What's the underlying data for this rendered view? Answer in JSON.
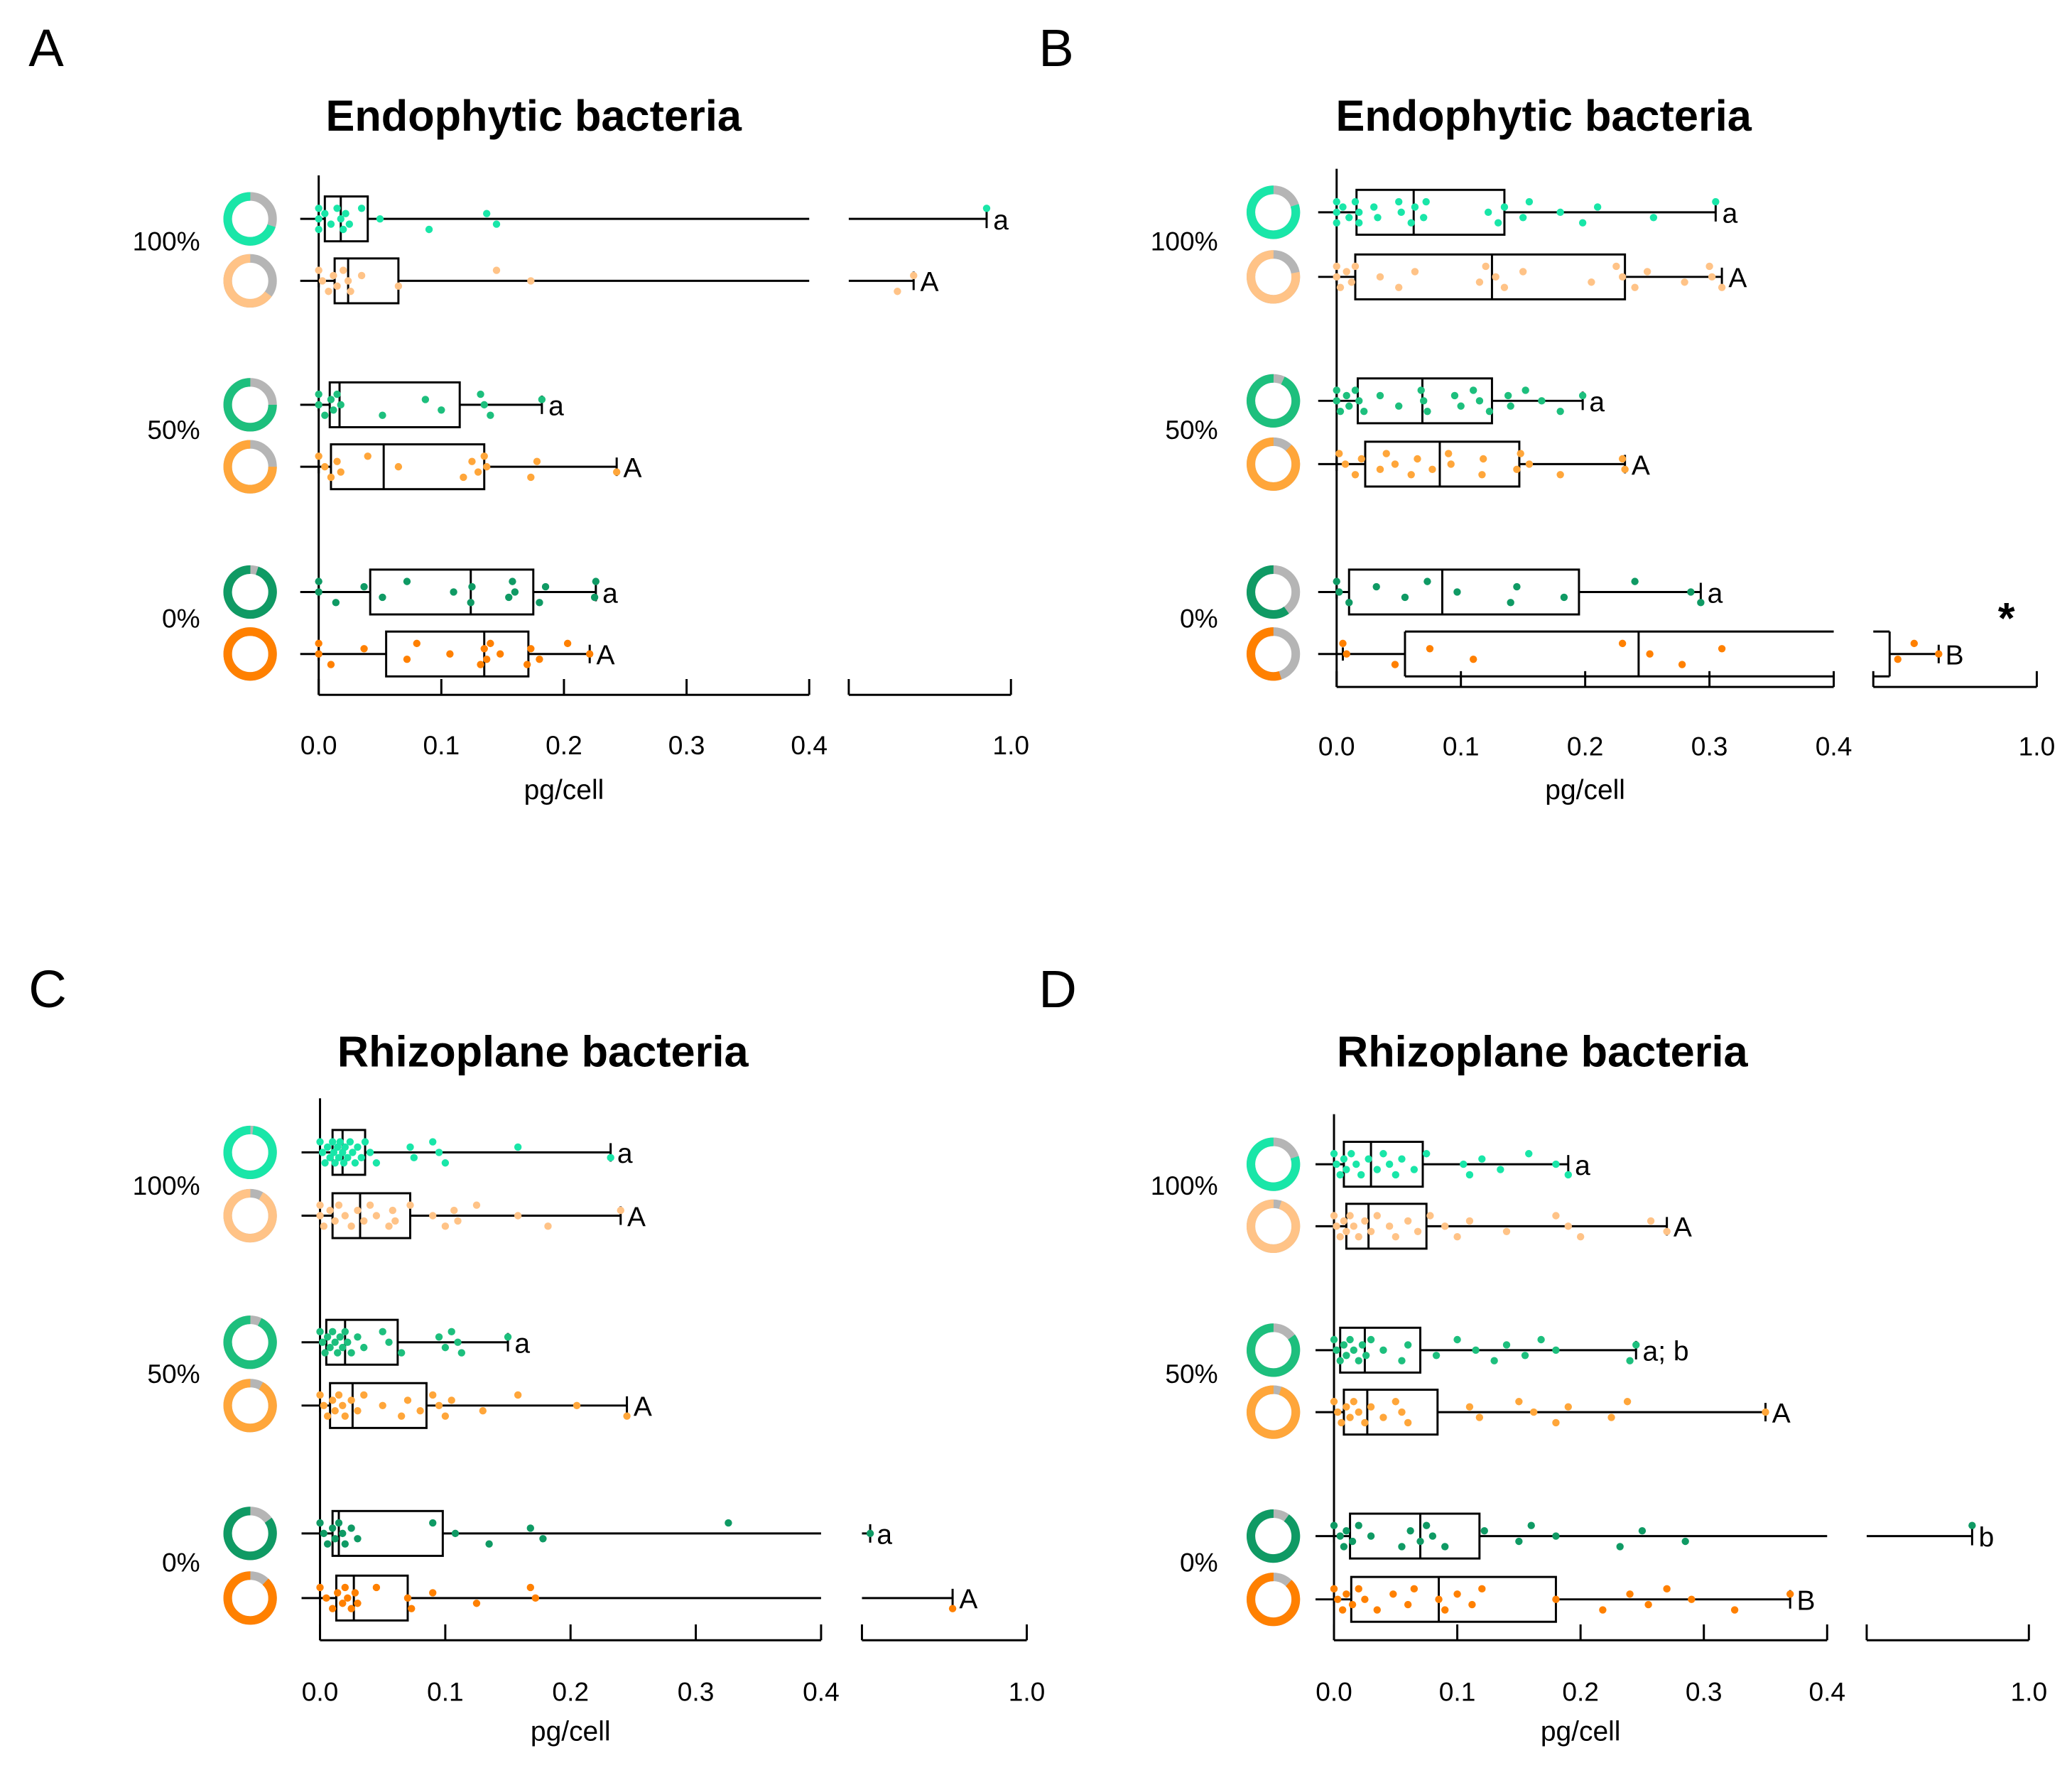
{
  "chart_data": [
    {
      "type": "box",
      "panel_label": "A",
      "title": "Endophytic bacteria",
      "xlabel": "pg/cell",
      "x_ticks": [
        "0.0",
        "0.1",
        "0.2",
        "0.3",
        "0.4",
        "1.0"
      ],
      "x_segments": [
        [
          0,
          0.4
        ],
        [
          0.8,
          1.0
        ]
      ],
      "categories": [
        "100%",
        "50%",
        "0%"
      ],
      "groups": [
        {
          "category": "100%",
          "color": "#19e6a8",
          "donut_fraction": 0.7,
          "min": 0,
          "q1": 0.005,
          "median": 0.018,
          "q3": 0.04,
          "max": 0.97,
          "letter": "a",
          "points": [
            0,
            0,
            0,
            0.005,
            0.01,
            0.015,
            0.018,
            0.02,
            0.022,
            0.025,
            0.035,
            0.05,
            0.09,
            0.137,
            0.145,
            0.97
          ]
        },
        {
          "category": "100%",
          "color": "#ffc387",
          "donut_fraction": 0.65,
          "min": 0,
          "q1": 0.013,
          "median": 0.024,
          "q3": 0.065,
          "max": 0.88,
          "letter": "A",
          "points": [
            0,
            0.003,
            0.008,
            0.012,
            0.015,
            0.02,
            0.024,
            0.026,
            0.035,
            0.065,
            0.145,
            0.173,
            0.86,
            0.88
          ]
        },
        {
          "category": "50%",
          "color": "#1dbf7d",
          "donut_fraction": 0.75,
          "min": 0,
          "q1": 0.009,
          "median": 0.017,
          "q3": 0.115,
          "max": 0.182,
          "letter": "a",
          "points": [
            0,
            0,
            0.005,
            0.01,
            0.012,
            0.015,
            0.018,
            0.052,
            0.087,
            0.1,
            0.132,
            0.135,
            0.14,
            0.182
          ]
        },
        {
          "category": "50%",
          "color": "#ffa63a",
          "donut_fraction": 0.75,
          "min": 0,
          "q1": 0.01,
          "median": 0.053,
          "q3": 0.135,
          "max": 0.243,
          "letter": "A",
          "points": [
            0,
            0.005,
            0.01,
            0.015,
            0.018,
            0.04,
            0.065,
            0.118,
            0.125,
            0.13,
            0.135,
            0.137,
            0.173,
            0.178,
            0.243
          ]
        },
        {
          "category": "0%",
          "color": "#0f9a64",
          "donut_fraction": 0.95,
          "min": 0,
          "q1": 0.042,
          "median": 0.124,
          "q3": 0.175,
          "max": 0.226,
          "letter": "a",
          "points": [
            0,
            0,
            0.014,
            0.037,
            0.052,
            0.072,
            0.11,
            0.124,
            0.125,
            0.155,
            0.158,
            0.16,
            0.18,
            0.185,
            0.225,
            0.226
          ]
        },
        {
          "category": "0%",
          "color": "#ff8000",
          "donut_fraction": 1.0,
          "min": 0,
          "q1": 0.055,
          "median": 0.135,
          "q3": 0.171,
          "max": 0.221,
          "letter": "A",
          "points": [
            0,
            0,
            0.01,
            0.037,
            0.072,
            0.08,
            0.107,
            0.132,
            0.135,
            0.137,
            0.14,
            0.148,
            0.17,
            0.173,
            0.18,
            0.203,
            0.221
          ]
        }
      ]
    },
    {
      "type": "box",
      "panel_label": "B",
      "title": "Endophytic bacteria",
      "xlabel": "pg/cell",
      "x_ticks": [
        "0.0",
        "0.1",
        "0.2",
        "0.3",
        "0.4",
        "1.0"
      ],
      "x_segments": [
        [
          0,
          0.4
        ],
        [
          0.8,
          1.0
        ]
      ],
      "categories": [
        "100%",
        "50%",
        "0%"
      ],
      "annotation": "*",
      "groups": [
        {
          "category": "100%",
          "color": "#19e6a8",
          "donut_fraction": 0.8,
          "min": 0,
          "q1": 0.016,
          "median": 0.062,
          "q3": 0.135,
          "max": 0.305,
          "letter": "a",
          "points": [
            0,
            0,
            0,
            0.005,
            0.01,
            0.015,
            0.018,
            0.018,
            0.03,
            0.033,
            0.05,
            0.052,
            0.06,
            0.063,
            0.07,
            0.072,
            0.122,
            0.13,
            0.135,
            0.15,
            0.155,
            0.18,
            0.198,
            0.21,
            0.255,
            0.305
          ]
        },
        {
          "category": "100%",
          "color": "#ffc387",
          "donut_fraction": 0.78,
          "min": 0,
          "q1": 0.015,
          "median": 0.125,
          "q3": 0.232,
          "max": 0.31,
          "letter": "A",
          "points": [
            0,
            0,
            0.003,
            0.008,
            0.012,
            0.015,
            0.035,
            0.05,
            0.063,
            0.115,
            0.12,
            0.128,
            0.135,
            0.15,
            0.205,
            0.225,
            0.23,
            0.24,
            0.25,
            0.28,
            0.3,
            0.302,
            0.31
          ]
        },
        {
          "category": "50%",
          "color": "#1dbf7d",
          "donut_fraction": 0.93,
          "min": 0,
          "q1": 0.017,
          "median": 0.069,
          "q3": 0.125,
          "max": 0.198,
          "letter": "a",
          "points": [
            0,
            0,
            0.003,
            0.008,
            0.01,
            0.015,
            0.018,
            0.022,
            0.035,
            0.05,
            0.068,
            0.07,
            0.073,
            0.095,
            0.1,
            0.11,
            0.115,
            0.123,
            0.138,
            0.14,
            0.152,
            0.165,
            0.18,
            0.198
          ]
        },
        {
          "category": "50%",
          "color": "#ffa63a",
          "donut_fraction": 0.88,
          "min": 0,
          "q1": 0.023,
          "median": 0.083,
          "q3": 0.147,
          "max": 0.232,
          "letter": "A",
          "points": [
            0.002,
            0.007,
            0.015,
            0.02,
            0.035,
            0.04,
            0.047,
            0.06,
            0.065,
            0.077,
            0.09,
            0.092,
            0.117,
            0.118,
            0.145,
            0.148,
            0.155,
            0.18,
            0.23,
            0.232
          ]
        },
        {
          "category": "0%",
          "color": "#0f9a64",
          "donut_fraction": 0.6,
          "min": 0,
          "q1": 0.01,
          "median": 0.085,
          "q3": 0.195,
          "max": 0.293,
          "letter": "a",
          "points": [
            0,
            0.002,
            0.01,
            0.032,
            0.055,
            0.073,
            0.097,
            0.14,
            0.145,
            0.183,
            0.24,
            0.285,
            0.293
          ]
        },
        {
          "category": "0%",
          "color": "#ff8000",
          "donut_fraction": 0.55,
          "min": 0.005,
          "q1": 0.055,
          "median": 0.243,
          "q3": 0.82,
          "max": 0.88,
          "letter": "B",
          "points": [
            0.005,
            0.008,
            0.047,
            0.075,
            0.11,
            0.23,
            0.252,
            0.278,
            0.31,
            0.83,
            0.85,
            0.88
          ]
        }
      ]
    },
    {
      "type": "box",
      "panel_label": "C",
      "title": "Rhizoplane bacteria",
      "xlabel": "pg/cell",
      "x_ticks": [
        "0.0",
        "0.1",
        "0.2",
        "0.3",
        "0.4",
        "1.0"
      ],
      "x_segments": [
        [
          0,
          0.4
        ],
        [
          0.8,
          1.0
        ]
      ],
      "categories": [
        "100%",
        "50%",
        "0%"
      ],
      "groups": [
        {
          "category": "100%",
          "color": "#19e6a8",
          "donut_fraction": 0.98,
          "min": 0,
          "q1": 0.01,
          "median": 0.018,
          "q3": 0.036,
          "max": 0.232,
          "letter": "a",
          "points": [
            0,
            0.002,
            0.004,
            0.006,
            0.008,
            0.01,
            0.011,
            0.012,
            0.014,
            0.015,
            0.016,
            0.018,
            0.019,
            0.02,
            0.022,
            0.024,
            0.026,
            0.028,
            0.03,
            0.033,
            0.036,
            0.04,
            0.045,
            0.072,
            0.075,
            0.09,
            0.095,
            0.1,
            0.158,
            0.232
          ]
        },
        {
          "category": "100%",
          "color": "#ffc387",
          "donut_fraction": 0.92,
          "min": 0,
          "q1": 0.01,
          "median": 0.032,
          "q3": 0.072,
          "max": 0.24,
          "letter": "A",
          "points": [
            0,
            0,
            0.003,
            0.008,
            0.012,
            0.015,
            0.02,
            0.025,
            0.03,
            0.035,
            0.04,
            0.045,
            0.055,
            0.058,
            0.06,
            0.072,
            0.09,
            0.1,
            0.107,
            0.11,
            0.125,
            0.158,
            0.182,
            0.24
          ]
        },
        {
          "category": "50%",
          "color": "#1dbf7d",
          "donut_fraction": 0.93,
          "min": 0,
          "q1": 0.005,
          "median": 0.02,
          "q3": 0.062,
          "max": 0.15,
          "letter": "a",
          "points": [
            0,
            0.002,
            0.004,
            0.006,
            0.008,
            0.01,
            0.012,
            0.014,
            0.016,
            0.018,
            0.02,
            0.022,
            0.025,
            0.03,
            0.035,
            0.05,
            0.055,
            0.065,
            0.095,
            0.1,
            0.105,
            0.11,
            0.113,
            0.15
          ]
        },
        {
          "category": "50%",
          "color": "#ffa63a",
          "donut_fraction": 0.92,
          "min": 0,
          "q1": 0.008,
          "median": 0.026,
          "q3": 0.085,
          "max": 0.245,
          "letter": "A",
          "points": [
            0,
            0.003,
            0.006,
            0.01,
            0.012,
            0.015,
            0.018,
            0.02,
            0.025,
            0.03,
            0.035,
            0.05,
            0.065,
            0.07,
            0.08,
            0.09,
            0.095,
            0.1,
            0.105,
            0.13,
            0.158,
            0.205,
            0.245
          ]
        },
        {
          "category": "0%",
          "color": "#0f9a64",
          "donut_fraction": 0.85,
          "min": 0,
          "q1": 0.01,
          "median": 0.015,
          "q3": 0.098,
          "max": 0.81,
          "letter": "a",
          "points": [
            0,
            0.003,
            0.006,
            0.01,
            0.012,
            0.015,
            0.018,
            0.02,
            0.025,
            0.03,
            0.09,
            0.108,
            0.135,
            0.168,
            0.178,
            0.326,
            0.81
          ]
        },
        {
          "category": "0%",
          "color": "#ff8000",
          "donut_fraction": 0.88,
          "min": 0,
          "q1": 0.013,
          "median": 0.027,
          "q3": 0.07,
          "max": 0.91,
          "letter": "A",
          "points": [
            0,
            0.005,
            0.01,
            0.014,
            0.018,
            0.02,
            0.022,
            0.025,
            0.028,
            0.03,
            0.045,
            0.07,
            0.073,
            0.09,
            0.125,
            0.168,
            0.172,
            0.91
          ]
        }
      ]
    },
    {
      "type": "box",
      "panel_label": "D",
      "title": "Rhizoplane bacteria",
      "xlabel": "pg/cell",
      "x_ticks": [
        "0.0",
        "0.1",
        "0.2",
        "0.3",
        "0.4",
        "1.0"
      ],
      "x_segments": [
        [
          0,
          0.4
        ],
        [
          0.8,
          1.0
        ]
      ],
      "categories": [
        "100%",
        "50%",
        "0%"
      ],
      "groups": [
        {
          "category": "100%",
          "color": "#19e6a8",
          "donut_fraction": 0.8,
          "min": 0,
          "q1": 0.008,
          "median": 0.03,
          "q3": 0.072,
          "max": 0.19,
          "letter": "a",
          "points": [
            0,
            0.002,
            0.005,
            0.008,
            0.01,
            0.014,
            0.018,
            0.022,
            0.028,
            0.035,
            0.04,
            0.045,
            0.05,
            0.055,
            0.065,
            0.075,
            0.105,
            0.11,
            0.12,
            0.135,
            0.158,
            0.18,
            0.19
          ]
        },
        {
          "category": "100%",
          "color": "#ffc387",
          "donut_fraction": 0.95,
          "min": 0,
          "q1": 0.01,
          "median": 0.028,
          "q3": 0.075,
          "max": 0.27,
          "letter": "A",
          "points": [
            0,
            0.002,
            0.005,
            0.008,
            0.01,
            0.013,
            0.016,
            0.02,
            0.025,
            0.03,
            0.035,
            0.045,
            0.05,
            0.06,
            0.068,
            0.078,
            0.09,
            0.1,
            0.11,
            0.14,
            0.18,
            0.19,
            0.2,
            0.257,
            0.27
          ]
        },
        {
          "category": "50%",
          "color": "#1dbf7d",
          "donut_fraction": 0.85,
          "min": 0,
          "q1": 0.005,
          "median": 0.025,
          "q3": 0.07,
          "max": 0.245,
          "letter": "a; b",
          "points": [
            0,
            0.002,
            0.005,
            0.008,
            0.01,
            0.013,
            0.016,
            0.02,
            0.023,
            0.026,
            0.03,
            0.04,
            0.055,
            0.06,
            0.083,
            0.1,
            0.115,
            0.13,
            0.14,
            0.155,
            0.168,
            0.18,
            0.24,
            0.245
          ]
        },
        {
          "category": "50%",
          "color": "#ffa63a",
          "donut_fraction": 0.95,
          "min": 0,
          "q1": 0.008,
          "median": 0.027,
          "q3": 0.084,
          "max": 0.35,
          "letter": "A",
          "points": [
            0,
            0.003,
            0.006,
            0.01,
            0.013,
            0.016,
            0.02,
            0.025,
            0.03,
            0.04,
            0.05,
            0.055,
            0.06,
            0.11,
            0.118,
            0.15,
            0.162,
            0.18,
            0.19,
            0.225,
            0.238,
            0.35
          ]
        },
        {
          "category": "0%",
          "color": "#0f9a64",
          "donut_fraction": 0.9,
          "min": 0,
          "q1": 0.013,
          "median": 0.07,
          "q3": 0.118,
          "max": 0.93,
          "letter": "b",
          "points": [
            0,
            0.005,
            0.008,
            0.01,
            0.015,
            0.02,
            0.03,
            0.055,
            0.062,
            0.07,
            0.075,
            0.08,
            0.09,
            0.122,
            0.15,
            0.16,
            0.18,
            0.232,
            0.25,
            0.285,
            0.93
          ]
        },
        {
          "category": "0%",
          "color": "#ff8000",
          "donut_fraction": 0.88,
          "min": 0,
          "q1": 0.014,
          "median": 0.085,
          "q3": 0.18,
          "max": 0.37,
          "letter": "B",
          "points": [
            0,
            0.003,
            0.007,
            0.01,
            0.015,
            0.02,
            0.025,
            0.035,
            0.048,
            0.06,
            0.065,
            0.085,
            0.09,
            0.1,
            0.112,
            0.12,
            0.18,
            0.218,
            0.24,
            0.255,
            0.27,
            0.29,
            0.325,
            0.37
          ]
        }
      ]
    }
  ],
  "colors": {
    "donut_remainder": "#b5b5b5",
    "axis": "#000000"
  }
}
